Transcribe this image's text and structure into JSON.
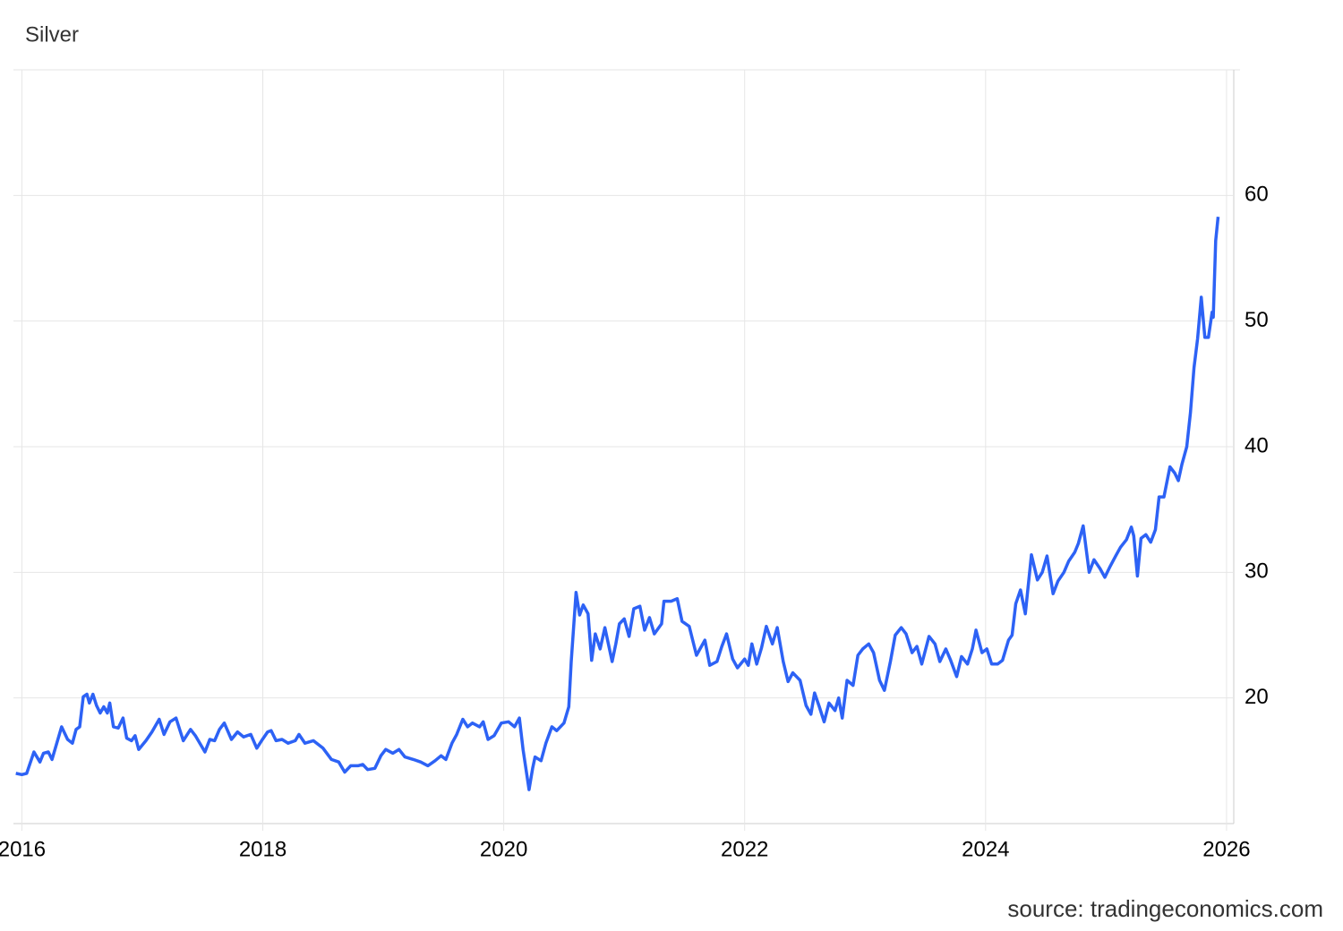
{
  "chart_data": {
    "type": "line",
    "title": "Silver",
    "source": "source: tradingeconomics.com",
    "color": "#2d62f5",
    "grid": true,
    "xlim": [
      2015.93,
      2026.06
    ],
    "xticks": [
      2016,
      2018,
      2020,
      2022,
      2024,
      2026
    ],
    "ylim": [
      10,
      70
    ],
    "yticks": [
      20,
      30,
      40,
      50,
      60
    ],
    "x": [
      2015.95,
      2016.0,
      2016.04,
      2016.1,
      2016.15,
      2016.18,
      2016.22,
      2016.25,
      2016.33,
      2016.38,
      2016.42,
      2016.45,
      2016.48,
      2016.51,
      2016.54,
      2016.56,
      2016.59,
      2016.62,
      2016.65,
      2016.68,
      2016.71,
      2016.73,
      2016.76,
      2016.8,
      2016.84,
      2016.87,
      2016.91,
      2016.94,
      2016.97,
      2017.03,
      2017.08,
      2017.14,
      2017.18,
      2017.23,
      2017.28,
      2017.34,
      2017.4,
      2017.44,
      2017.52,
      2017.56,
      2017.6,
      2017.64,
      2017.68,
      2017.74,
      2017.79,
      2017.84,
      2017.9,
      2017.95,
      2017.99,
      2018.04,
      2018.07,
      2018.11,
      2018.16,
      2018.21,
      2018.27,
      2018.3,
      2018.35,
      2018.42,
      2018.5,
      2018.57,
      2018.63,
      2018.68,
      2018.73,
      2018.79,
      2018.83,
      2018.87,
      2018.93,
      2018.98,
      2019.02,
      2019.08,
      2019.13,
      2019.18,
      2019.25,
      2019.31,
      2019.37,
      2019.43,
      2019.48,
      2019.52,
      2019.57,
      2019.61,
      2019.66,
      2019.7,
      2019.74,
      2019.8,
      2019.83,
      2019.87,
      2019.92,
      2019.98,
      2020.04,
      2020.09,
      2020.13,
      2020.16,
      2020.21,
      2020.24,
      2020.26,
      2020.31,
      2020.35,
      2020.4,
      2020.44,
      2020.5,
      2020.54,
      2020.56,
      2020.6,
      2020.63,
      2020.66,
      2020.7,
      2020.73,
      2020.76,
      2020.8,
      2020.84,
      2020.9,
      2020.93,
      2020.96,
      2021.0,
      2021.04,
      2021.08,
      2021.13,
      2021.17,
      2021.21,
      2021.25,
      2021.31,
      2021.33,
      2021.39,
      2021.44,
      2021.48,
      2021.54,
      2021.6,
      2021.67,
      2021.71,
      2021.77,
      2021.81,
      2021.85,
      2021.9,
      2021.94,
      2022.0,
      2022.03,
      2022.06,
      2022.1,
      2022.14,
      2022.18,
      2022.23,
      2022.27,
      2022.32,
      2022.36,
      2022.4,
      2022.46,
      2022.51,
      2022.55,
      2022.58,
      2022.62,
      2022.66,
      2022.7,
      2022.75,
      2022.78,
      2022.81,
      2022.85,
      2022.9,
      2022.94,
      2022.98,
      2023.03,
      2023.07,
      2023.12,
      2023.16,
      2023.21,
      2023.25,
      2023.3,
      2023.34,
      2023.39,
      2023.43,
      2023.47,
      2023.53,
      2023.58,
      2023.62,
      2023.67,
      2023.71,
      2023.76,
      2023.8,
      2023.85,
      2023.89,
      2023.92,
      2023.97,
      2024.01,
      2024.05,
      2024.1,
      2024.14,
      2024.19,
      2024.22,
      2024.25,
      2024.29,
      2024.33,
      2024.38,
      2024.43,
      2024.47,
      2024.51,
      2024.56,
      2024.6,
      2024.65,
      2024.69,
      2024.74,
      2024.77,
      2024.81,
      2024.86,
      2024.9,
      2024.95,
      2024.99,
      2025.03,
      2025.08,
      2025.12,
      2025.17,
      2025.21,
      2025.23,
      2025.26,
      2025.29,
      2025.33,
      2025.37,
      2025.41,
      2025.44,
      2025.48,
      2025.53,
      2025.57,
      2025.6,
      2025.63,
      2025.67,
      2025.7,
      2025.73,
      2025.76,
      2025.79,
      2025.82,
      2025.85,
      2025.88,
      2025.89,
      2025.91,
      2025.93
    ],
    "values": [
      14.0,
      13.9,
      14.0,
      15.7,
      14.9,
      15.6,
      15.7,
      15.1,
      17.7,
      16.7,
      16.4,
      17.5,
      17.7,
      20.1,
      20.3,
      19.6,
      20.3,
      19.4,
      18.8,
      19.3,
      18.8,
      19.6,
      17.7,
      17.6,
      18.4,
      16.8,
      16.6,
      17.0,
      15.9,
      16.6,
      17.3,
      18.3,
      17.1,
      18.1,
      18.4,
      16.6,
      17.5,
      17.0,
      15.7,
      16.7,
      16.6,
      17.5,
      18.0,
      16.7,
      17.3,
      16.9,
      17.1,
      16.0,
      16.6,
      17.3,
      17.4,
      16.6,
      16.7,
      16.4,
      16.6,
      17.1,
      16.4,
      16.6,
      16.0,
      15.1,
      14.9,
      14.1,
      14.6,
      14.6,
      14.7,
      14.3,
      14.4,
      15.4,
      15.9,
      15.6,
      15.9,
      15.3,
      15.1,
      14.9,
      14.6,
      15.0,
      15.4,
      15.1,
      16.4,
      17.1,
      18.3,
      17.7,
      18.0,
      17.7,
      18.1,
      16.7,
      17.0,
      18.0,
      18.1,
      17.7,
      18.4,
      15.9,
      12.7,
      14.4,
      15.3,
      15.0,
      16.4,
      17.7,
      17.4,
      18.0,
      19.3,
      22.9,
      28.4,
      26.6,
      27.4,
      26.7,
      23.0,
      25.1,
      23.9,
      25.6,
      22.9,
      24.3,
      25.9,
      26.3,
      24.9,
      27.1,
      27.3,
      25.4,
      26.4,
      25.1,
      25.9,
      27.7,
      27.7,
      27.9,
      26.1,
      25.7,
      23.4,
      24.6,
      22.6,
      22.9,
      24.1,
      25.1,
      23.1,
      22.4,
      23.1,
      22.6,
      24.3,
      22.7,
      24.0,
      25.7,
      24.3,
      25.6,
      22.9,
      21.3,
      22.0,
      21.4,
      19.4,
      18.7,
      20.4,
      19.3,
      18.1,
      19.6,
      19.0,
      20.0,
      18.4,
      21.4,
      21.0,
      23.4,
      23.9,
      24.3,
      23.6,
      21.4,
      20.6,
      22.9,
      25.0,
      25.6,
      25.1,
      23.6,
      24.1,
      22.7,
      24.9,
      24.3,
      22.9,
      23.9,
      23.0,
      21.7,
      23.3,
      22.7,
      23.9,
      25.4,
      23.6,
      23.9,
      22.7,
      22.7,
      23.0,
      24.6,
      25.0,
      27.5,
      28.6,
      26.7,
      31.4,
      29.4,
      30.0,
      31.3,
      28.3,
      29.3,
      30.0,
      30.9,
      31.6,
      32.3,
      33.7,
      30.0,
      31.0,
      30.3,
      29.6,
      30.4,
      31.3,
      32.0,
      32.6,
      33.6,
      32.9,
      29.7,
      32.7,
      33.0,
      32.4,
      33.4,
      36.0,
      36.0,
      38.4,
      37.9,
      37.3,
      38.6,
      40.0,
      42.7,
      46.3,
      48.6,
      51.9,
      48.7,
      48.7,
      50.7,
      50.3,
      56.4,
      58.3
    ]
  }
}
